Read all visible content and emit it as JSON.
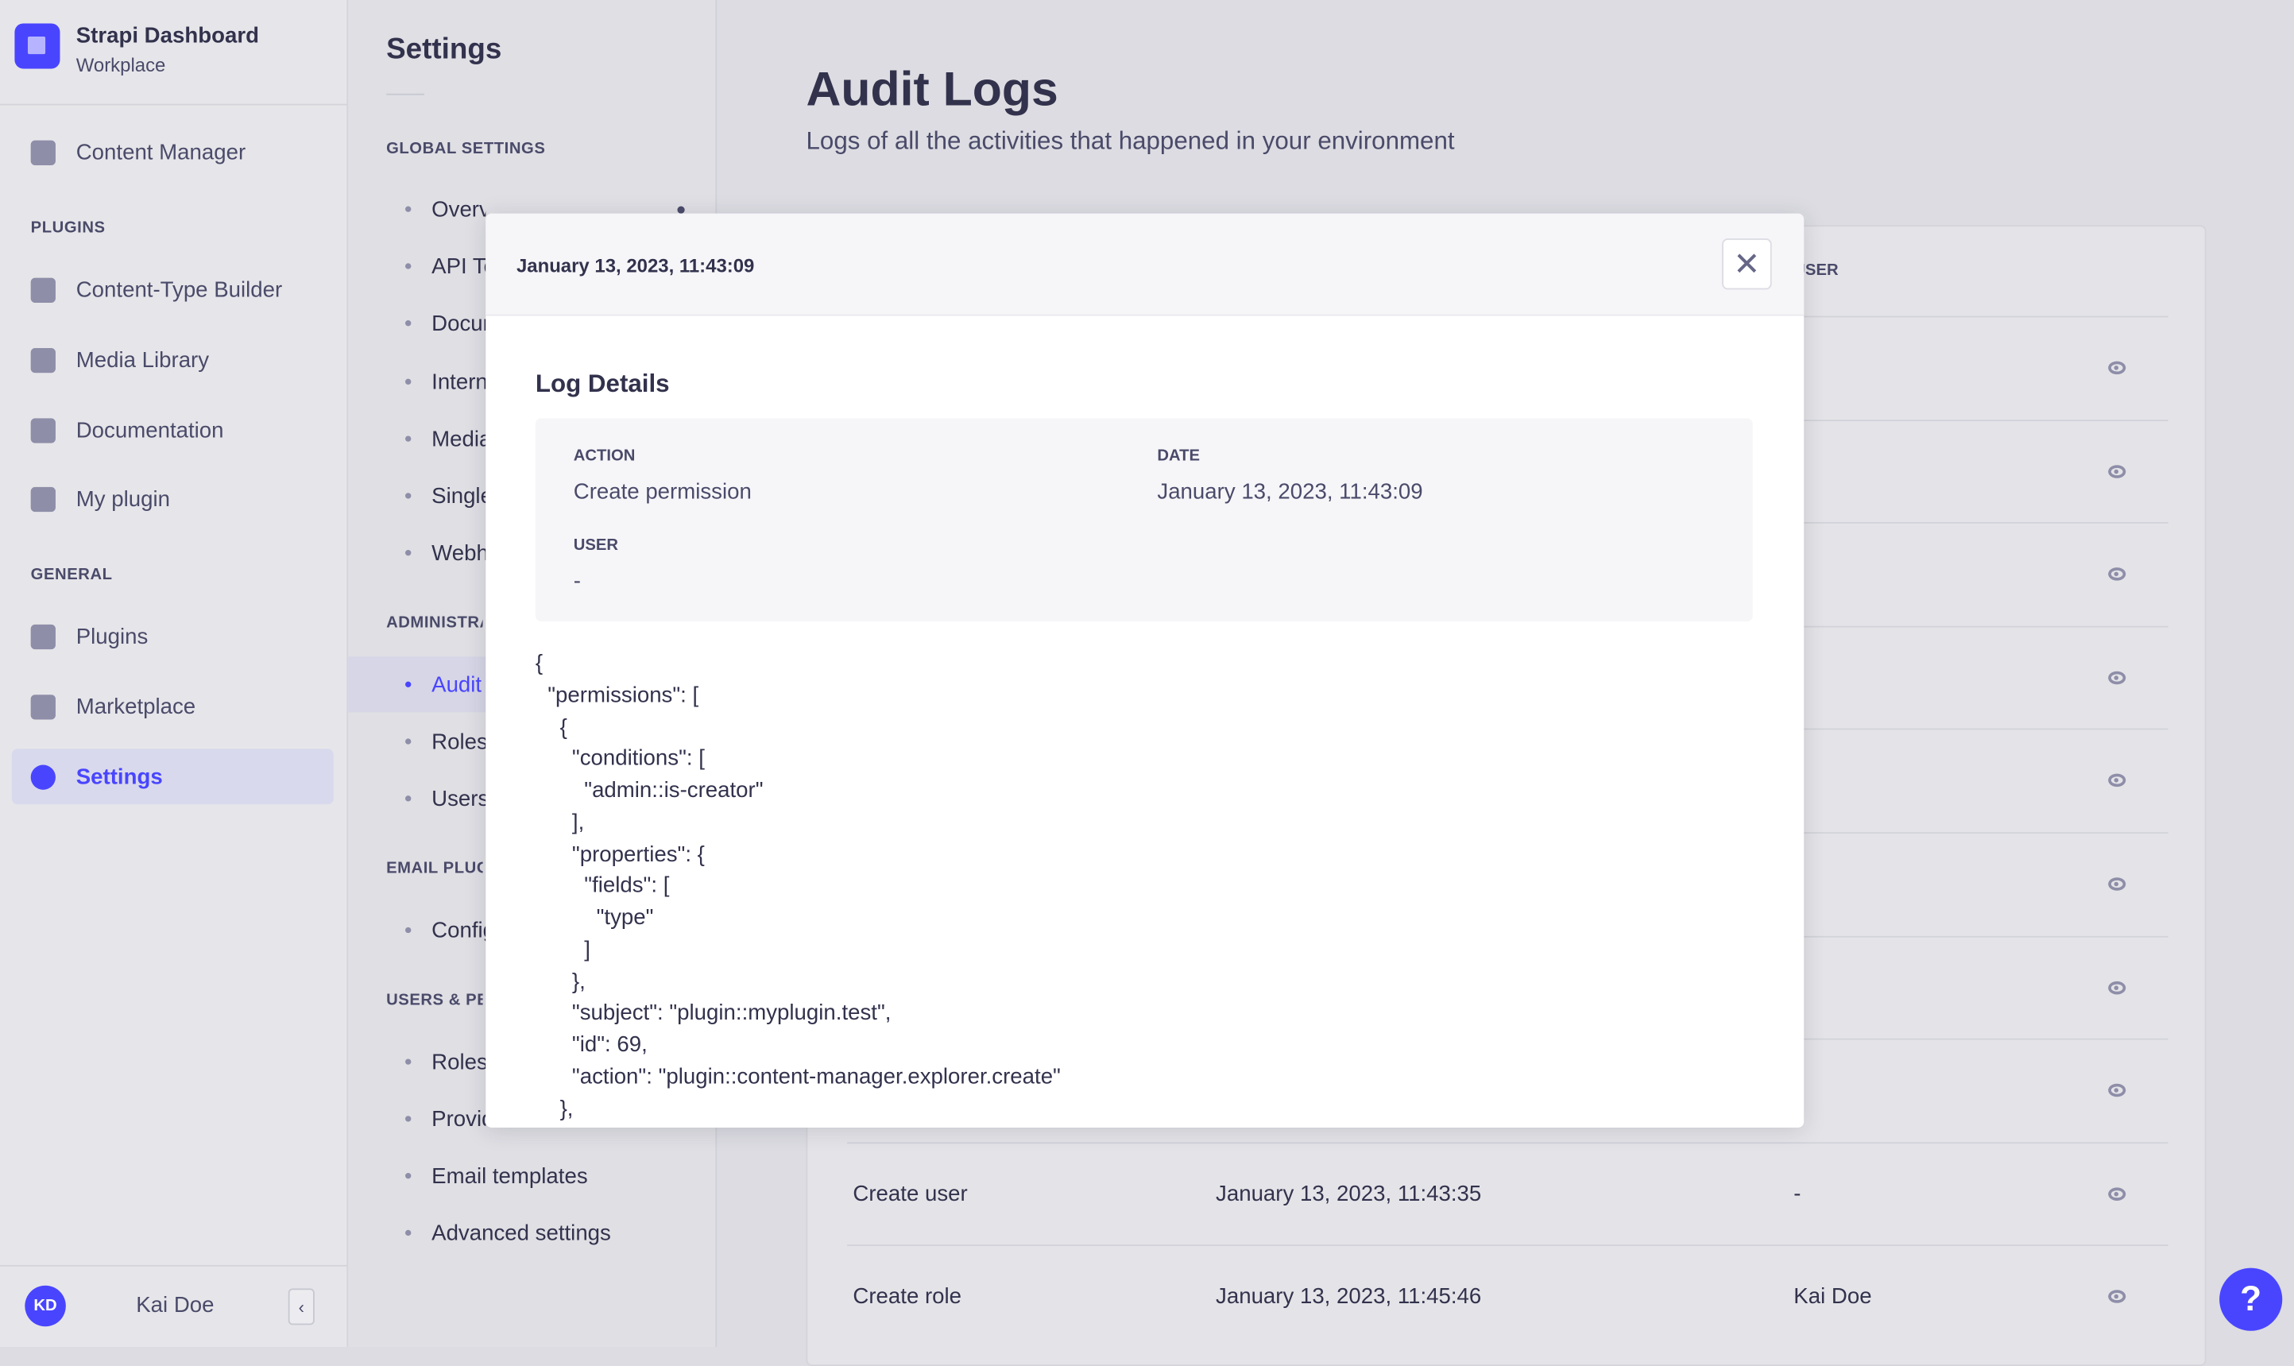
{
  "brand": {
    "title": "Strapi Dashboard",
    "subtitle": "Workplace"
  },
  "nav": {
    "top": [
      {
        "label": "Content Manager",
        "icon": "feather-icon"
      }
    ],
    "plugins_label": "PLUGINS",
    "plugins": [
      {
        "label": "Content-Type Builder",
        "icon": "layout-icon"
      },
      {
        "label": "Media Library",
        "icon": "image-icon"
      },
      {
        "label": "Documentation",
        "icon": "info-icon"
      },
      {
        "label": "My plugin",
        "icon": "puzzle-icon"
      }
    ],
    "general_label": "GENERAL",
    "general": [
      {
        "label": "Plugins",
        "icon": "puzzle-icon"
      },
      {
        "label": "Marketplace",
        "icon": "cart-icon"
      },
      {
        "label": "Settings",
        "icon": "gear-icon",
        "active": true
      }
    ],
    "user": {
      "initials": "KD",
      "name": "Kai Doe"
    },
    "collapse_glyph": "‹"
  },
  "settings": {
    "title": "Settings",
    "sections": [
      {
        "label": "GLOBAL SETTINGS",
        "items": [
          "Overview",
          "API Tokens",
          "Documentation",
          "Internationalization",
          "Media Library",
          "Single Sign-On",
          "Webhooks"
        ]
      },
      {
        "label": "ADMINISTRATION PANEL",
        "items": [
          "Audit Logs",
          "Roles",
          "Users"
        ]
      },
      {
        "label": "EMAIL PLUGIN",
        "items": [
          "Configuration"
        ]
      },
      {
        "label": "USERS & PERMISSIONS PLUGIN",
        "items": [
          "Roles",
          "Providers",
          "Email templates",
          "Advanced settings"
        ]
      }
    ],
    "active": "Audit Logs"
  },
  "main": {
    "title": "Audit Logs",
    "subtitle": "Logs of all the activities that happened in your environment",
    "table": {
      "header_user": "USER",
      "rows": [
        {},
        {},
        {},
        {},
        {},
        {},
        {},
        {},
        {
          "action": "Create user",
          "date": "January 13, 2023, 11:43:35",
          "user": "-"
        },
        {
          "action": "Create role",
          "date": "January 13, 2023, 11:45:46",
          "user": "Kai Doe"
        }
      ]
    }
  },
  "modal": {
    "title": "January 13, 2023, 11:43:09",
    "close_glyph": "✕",
    "section_title": "Log Details",
    "action_label": "ACTION",
    "action_value": "Create permission",
    "date_label": "DATE",
    "date_value": "January 13, 2023, 11:43:09",
    "user_label": "USER",
    "user_value": "-",
    "json_lines": [
      "{",
      "  \"permissions\": [",
      "    {",
      "      \"conditions\": [",
      "        \"admin::is-creator\"",
      "      ],",
      "      \"properties\": {",
      "        \"fields\": [",
      "          \"type\"",
      "        ]",
      "      },",
      "      \"subject\": \"plugin::myplugin.test\",",
      "      \"id\": 69,",
      "      \"action\": \"plugin::content-manager.explorer.create\"",
      "    },"
    ]
  },
  "help_glyph": "?",
  "colors": {
    "accent": "#4945ff",
    "text": "#32324d",
    "muted": "#4a4a6a"
  }
}
